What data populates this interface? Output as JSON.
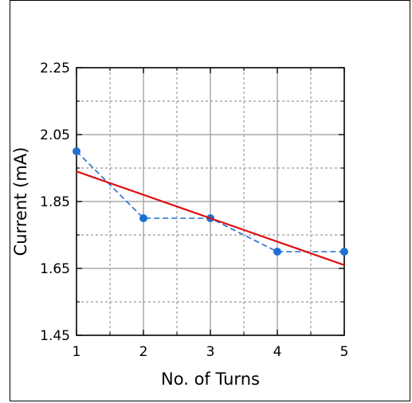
{
  "chart_data": {
    "type": "line",
    "xlabel": "No. of Turns",
    "ylabel": "Current (mA)",
    "xlim": [
      1,
      5
    ],
    "ylim": [
      1.45,
      2.25
    ],
    "x_ticks": [
      1,
      2,
      3,
      4,
      5
    ],
    "x_tick_labels": [
      "1",
      "2",
      "3",
      "4",
      "5"
    ],
    "y_ticks": [
      1.45,
      1.65,
      1.85,
      2.05,
      2.25
    ],
    "y_tick_labels": [
      "1.45",
      "1.65",
      "1.85",
      "2.05",
      "2.25"
    ],
    "grid": true,
    "series": [
      {
        "style": "dashed-markers",
        "color": "#1f6fd0",
        "x": [
          1,
          2,
          3,
          4,
          5
        ],
        "y": [
          2.0,
          1.8,
          1.8,
          1.7,
          1.7
        ]
      },
      {
        "style": "solid",
        "color": "#e01010",
        "x": [
          1,
          5
        ],
        "y": [
          1.94,
          1.66
        ]
      }
    ]
  }
}
